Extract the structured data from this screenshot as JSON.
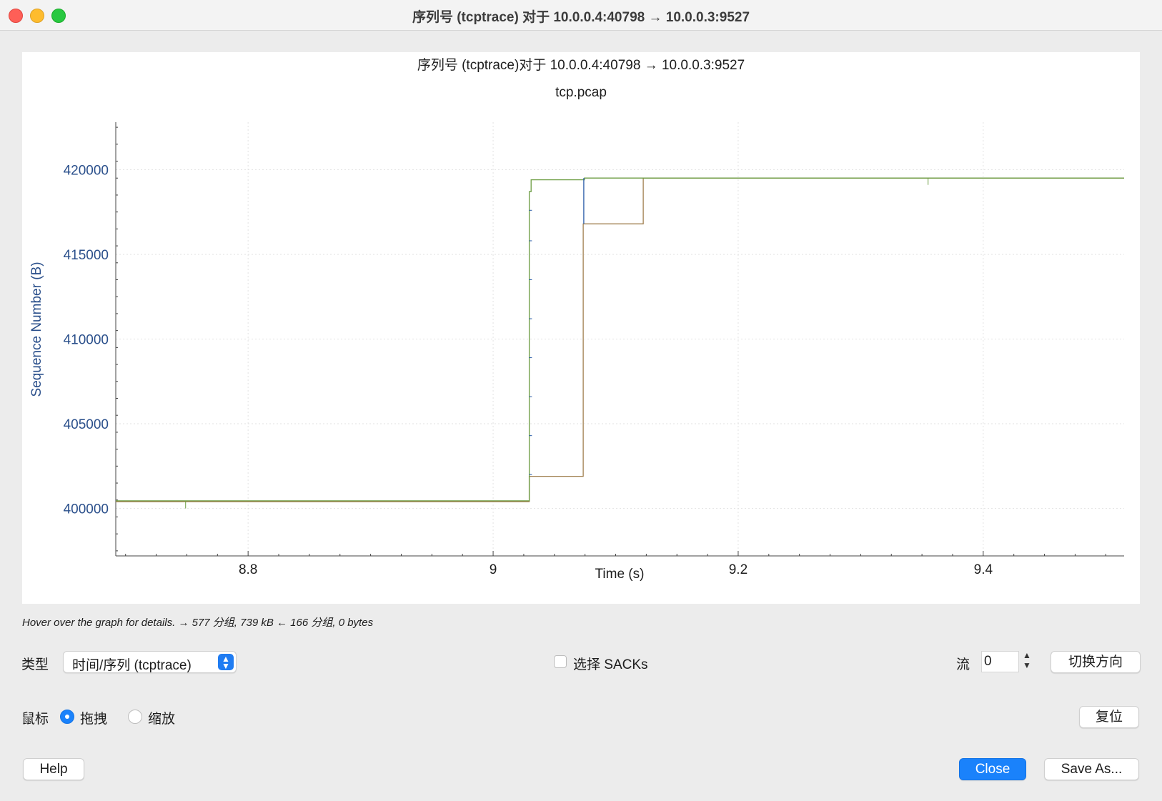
{
  "window": {
    "title": "序列号 (tcptrace) 对于 10.0.0.4:40798 → 10.0.0.3:9527"
  },
  "chart_data": {
    "type": "line",
    "title": "序列号 (tcptrace)对于 10.0.0.4:40798 → 10.0.0.3:9527",
    "subtitle": "tcp.pcap",
    "xlabel": "Time (s)",
    "ylabel": "Sequence Number (B)",
    "xlim": [
      8.692,
      9.515
    ],
    "ylim": [
      397200,
      422800
    ],
    "xticks": [
      8.8,
      9,
      9.2,
      9.4
    ],
    "xtick_labels": [
      "8.8",
      "9",
      "9.2",
      "9.4"
    ],
    "yticks": [
      400000,
      405000,
      410000,
      415000,
      420000
    ],
    "ytick_labels": [
      "400000",
      "405000",
      "410000",
      "415000",
      "420000"
    ],
    "grid": true,
    "colors": {
      "ack": "#a07f4e",
      "window": "#6e9e44",
      "segment": "#2a5ca8",
      "axis_text": "#2a4f8b"
    },
    "series": [
      {
        "role": "ack",
        "x": [
          8.692,
          9.0295,
          9.0295,
          9.0735,
          9.0735,
          9.1225,
          9.1225,
          9.515
        ],
        "y": [
          400400,
          400400,
          401900,
          401900,
          416800,
          416800,
          419500,
          419500
        ]
      },
      {
        "role": "window",
        "x": [
          8.692,
          9.0295,
          9.0295,
          9.031,
          9.031,
          9.0745,
          9.0745,
          9.515
        ],
        "y": [
          400450,
          400450,
          418700,
          418700,
          419400,
          419400,
          419500,
          419500
        ]
      },
      {
        "role": "segment",
        "x": [
          9.074,
          9.074
        ],
        "y": [
          416800,
          419500
        ]
      }
    ]
  },
  "status": {
    "text": "Hover over the graph for details. → 577 分组, 739 kB ← 166 分组, 0 bytes"
  },
  "controls": {
    "type_label": "类型",
    "type_value": "时间/序列 (tcptrace)",
    "sacks_label": "选择 SACKs",
    "stream_label": "流",
    "stream_value": "0",
    "switch_direction": "切换方向",
    "mouse_label": "鼠标",
    "drag_label": "拖拽",
    "zoom_label": "缩放",
    "reset": "复位",
    "help": "Help",
    "close": "Close",
    "save_as": "Save As..."
  }
}
